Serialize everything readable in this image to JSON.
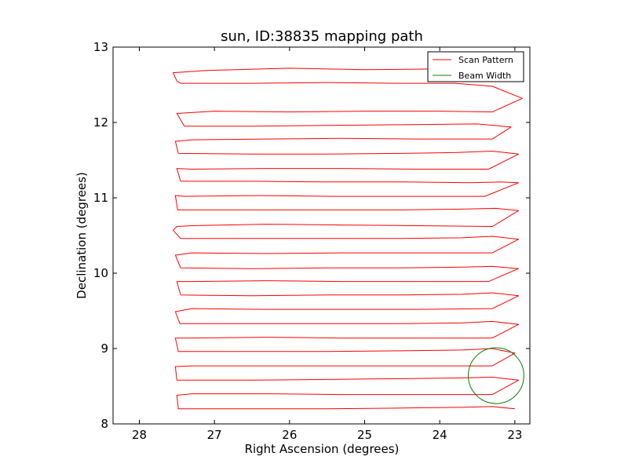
{
  "chart_data": {
    "type": "line",
    "title": "sun, ID:38835 mapping path",
    "xlabel": "Right Ascension (degrees)",
    "ylabel": "Declination (degrees)",
    "xlim": [
      28.35,
      22.8
    ],
    "ylim": [
      8,
      13
    ],
    "x_inverted": true,
    "xticks": [
      {
        "value": 28,
        "label": "28"
      },
      {
        "value": 27,
        "label": "27"
      },
      {
        "value": 26,
        "label": "26"
      },
      {
        "value": 25,
        "label": "25"
      },
      {
        "value": 24,
        "label": "24"
      },
      {
        "value": 23,
        "label": "23"
      }
    ],
    "yticks": [
      {
        "value": 8,
        "label": "8"
      },
      {
        "value": 9,
        "label": "9"
      },
      {
        "value": 10,
        "label": "10"
      },
      {
        "value": 11,
        "label": "11"
      },
      {
        "value": 12,
        "label": "12"
      },
      {
        "value": 13,
        "label": "13"
      }
    ],
    "grid": false,
    "legend_position": "top-right",
    "series": [
      {
        "name": "Scan Pattern",
        "color": "#ff0000",
        "x": [
          23.1,
          24.0,
          25.0,
          26.0,
          27.1,
          27.55,
          27.5,
          27.45,
          26.5,
          25.5,
          24.5,
          23.8,
          23.3,
          22.9,
          23.3,
          24.0,
          25.0,
          26.0,
          27.0,
          27.5,
          27.4,
          26.5,
          25.5,
          24.5,
          23.5,
          23.05,
          23.3,
          24.3,
          25.3,
          26.3,
          27.3,
          27.52,
          27.48,
          26.5,
          25.5,
          24.5,
          23.8,
          23.3,
          22.95,
          23.35,
          24.3,
          25.3,
          26.3,
          27.3,
          27.5,
          27.45,
          26.5,
          25.5,
          24.5,
          23.6,
          23.2,
          22.95,
          23.4,
          24.4,
          25.4,
          26.4,
          27.4,
          27.52,
          27.49,
          26.5,
          25.5,
          24.5,
          23.7,
          23.25,
          22.95,
          23.3,
          24.3,
          25.3,
          26.3,
          27.3,
          27.5,
          27.55,
          27.45,
          26.5,
          25.5,
          24.5,
          23.7,
          23.3,
          22.95,
          23.3,
          24.3,
          25.3,
          26.3,
          27.3,
          27.52,
          27.45,
          26.5,
          25.5,
          24.5,
          23.7,
          23.3,
          22.95,
          23.35,
          24.3,
          25.3,
          26.3,
          27.3,
          27.5,
          27.45,
          26.5,
          25.5,
          24.5,
          23.7,
          23.3,
          22.95,
          23.3,
          24.3,
          25.3,
          26.3,
          27.3,
          27.52,
          27.46,
          26.5,
          25.5,
          24.5,
          23.7,
          23.3,
          22.95,
          23.3,
          24.3,
          25.3,
          26.3,
          27.3,
          27.52,
          27.48,
          26.5,
          25.5,
          24.5,
          23.7,
          23.3,
          23.0,
          23.3,
          24.3,
          25.3,
          26.3,
          27.3,
          27.52,
          27.5,
          26.5,
          25.5,
          24.5,
          23.7,
          23.3,
          22.95,
          23.3,
          24.3,
          25.3,
          26.3,
          27.3,
          27.5,
          27.48,
          26.5,
          25.5,
          24.5,
          23.7,
          23.3,
          23.0
        ],
        "y": [
          12.72,
          12.71,
          12.7,
          12.72,
          12.69,
          12.66,
          12.55,
          12.52,
          12.52,
          12.53,
          12.52,
          12.52,
          12.48,
          12.32,
          12.14,
          12.15,
          12.15,
          12.14,
          12.15,
          12.12,
          11.95,
          11.95,
          11.96,
          11.97,
          11.98,
          11.94,
          11.78,
          11.78,
          11.79,
          11.78,
          11.77,
          11.75,
          11.59,
          11.58,
          11.58,
          11.59,
          11.6,
          11.62,
          11.58,
          11.38,
          11.38,
          11.39,
          11.39,
          11.38,
          11.39,
          11.22,
          11.22,
          11.21,
          11.21,
          11.2,
          11.21,
          11.2,
          11.02,
          11.02,
          11.02,
          11.03,
          11.02,
          11.03,
          10.84,
          10.84,
          10.84,
          10.84,
          10.85,
          10.86,
          10.83,
          10.62,
          10.63,
          10.64,
          10.65,
          10.63,
          10.62,
          10.57,
          10.46,
          10.46,
          10.46,
          10.46,
          10.47,
          10.49,
          10.45,
          10.27,
          10.27,
          10.27,
          10.26,
          10.27,
          10.24,
          10.07,
          10.06,
          10.07,
          10.07,
          10.08,
          10.09,
          10.06,
          9.89,
          9.89,
          9.89,
          9.9,
          9.89,
          9.89,
          9.71,
          9.7,
          9.71,
          9.71,
          9.72,
          9.74,
          9.7,
          9.53,
          9.52,
          9.52,
          9.52,
          9.53,
          9.49,
          9.33,
          9.33,
          9.33,
          9.33,
          9.34,
          9.36,
          9.32,
          9.14,
          9.14,
          9.14,
          9.15,
          9.14,
          9.14,
          8.96,
          8.96,
          8.96,
          8.97,
          8.98,
          9.0,
          8.94,
          8.77,
          8.77,
          8.77,
          8.77,
          8.77,
          8.76,
          8.58,
          8.58,
          8.59,
          8.6,
          8.61,
          8.62,
          8.58,
          8.39,
          8.39,
          8.39,
          8.4,
          8.4,
          8.38,
          8.2,
          8.2,
          8.2,
          8.21,
          8.22,
          8.23,
          8.2
        ]
      },
      {
        "name": "Beam Width",
        "color": "#008000",
        "shape": "circle",
        "center": [
          23.25,
          8.64
        ],
        "radius": 0.37
      }
    ],
    "legend": [
      {
        "label": "Scan Pattern",
        "color": "#ff0000"
      },
      {
        "label": "Beam Width",
        "color": "#008000"
      }
    ]
  }
}
